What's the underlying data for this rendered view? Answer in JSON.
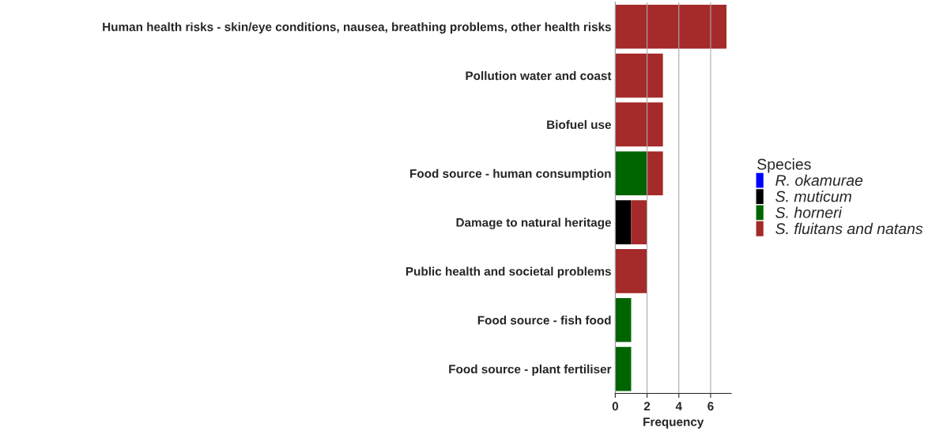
{
  "chart_data": {
    "type": "bar",
    "orientation": "horizontal",
    "stacked": true,
    "xlabel": "Frequency",
    "legend_title": "Species",
    "categories": [
      "Human health risks - skin/eye conditions, nausea, breathing problems, other health risks",
      "Pollution water and coast",
      "Biofuel use",
      "Food source - human consumption",
      "Damage to natural heritage",
      "Public health and societal problems",
      "Food source - fish food",
      "Food source - plant fertiliser"
    ],
    "series": [
      {
        "name": "R. okamurae",
        "color": "#0000ff",
        "values": [
          0,
          0,
          0,
          0,
          0,
          0,
          0,
          0
        ]
      },
      {
        "name": "S. muticum",
        "color": "#000000",
        "values": [
          0,
          0,
          0,
          0,
          1,
          0,
          0,
          0
        ]
      },
      {
        "name": "S. horneri",
        "color": "#006400",
        "values": [
          0,
          0,
          0,
          2,
          0,
          0,
          1,
          1
        ]
      },
      {
        "name": "S. fluitans and natans",
        "color": "#a52a2a",
        "values": [
          7,
          3,
          3,
          1,
          1,
          2,
          0,
          0
        ]
      }
    ],
    "xlim": [
      0,
      7.3
    ],
    "xticks": [
      0,
      2,
      4,
      6
    ],
    "grid": "x",
    "legend": "right"
  }
}
